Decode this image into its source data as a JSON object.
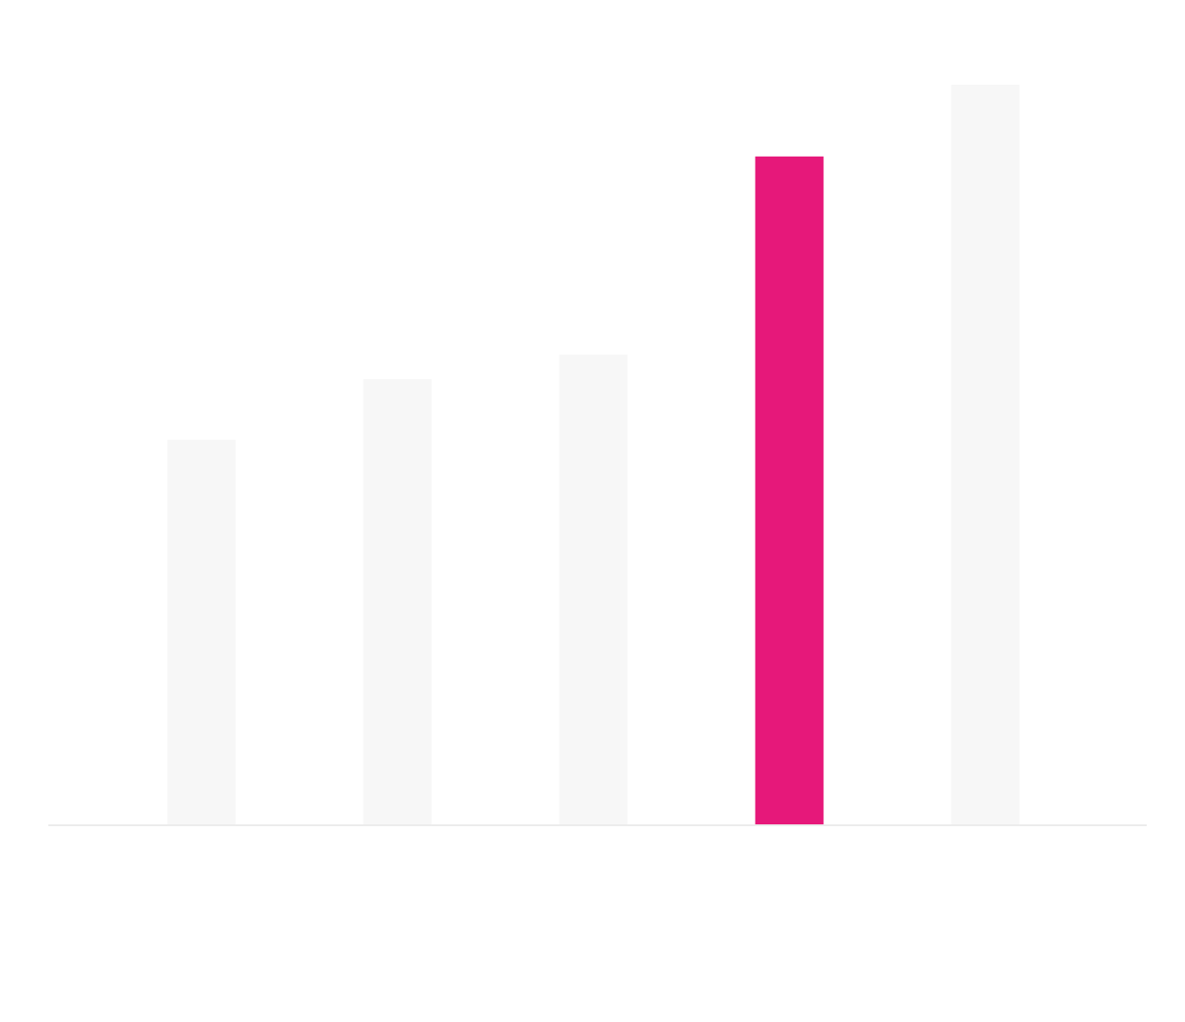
{
  "chart_data": {
    "type": "bar",
    "categories": [
      null,
      null,
      null,
      null,
      null
    ],
    "values": [
      52,
      60.2,
      63.5,
      90.3,
      100
    ],
    "colors": [
      "#f7f7f7",
      "#f7f7f7",
      "#f7f7f7",
      "#e6187a",
      "#f7f7f7"
    ],
    "ylim": [
      0,
      100
    ]
  }
}
